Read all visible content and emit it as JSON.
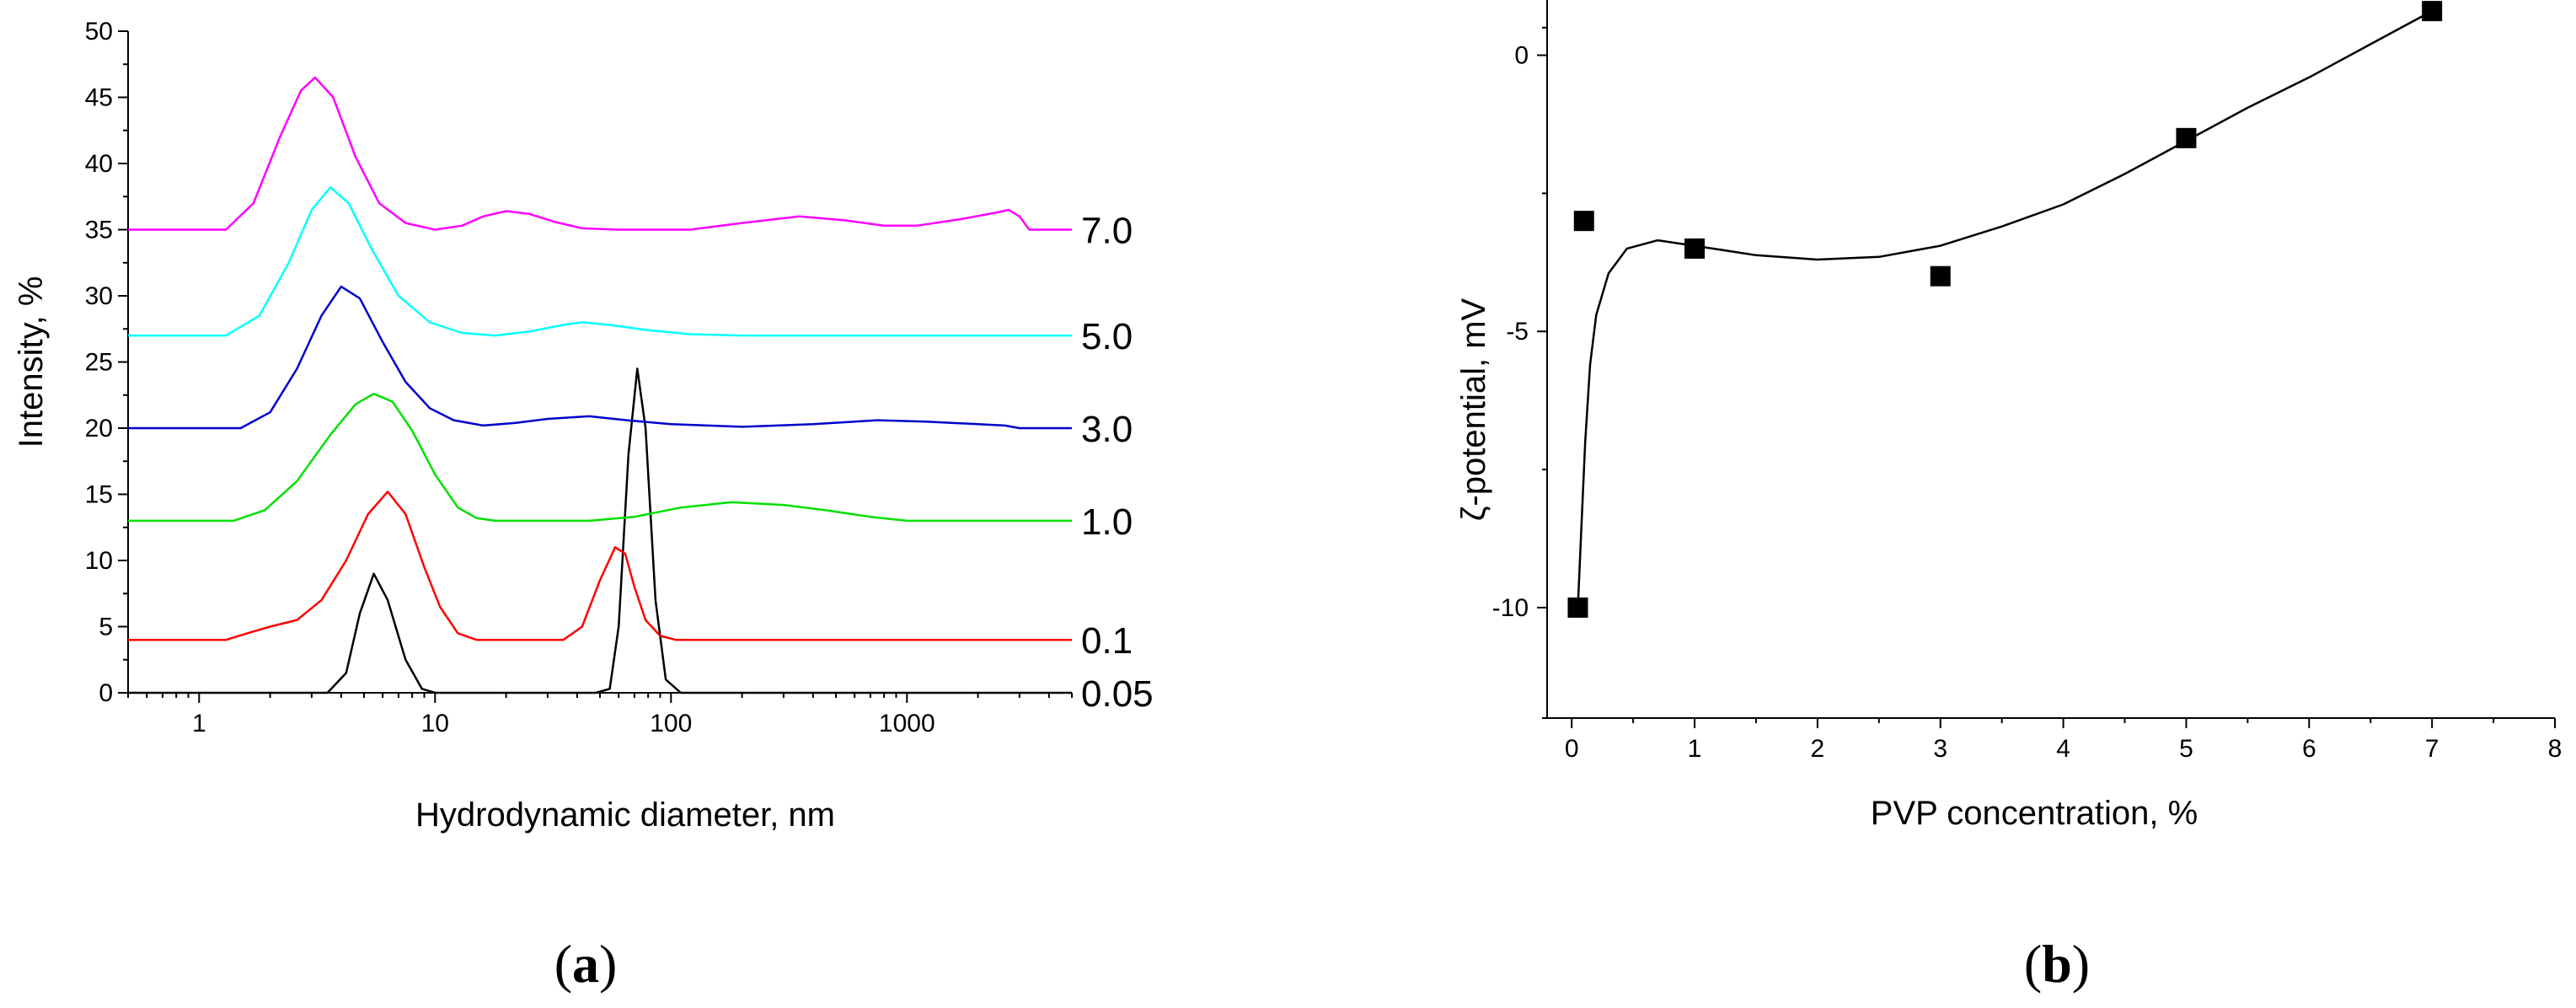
{
  "chart_data": [
    {
      "type": "line",
      "panel_label": "(a)",
      "panel_letter": "a",
      "xlabel": "Hydrodynamic diameter, nm",
      "ylabel": "Intensity, %",
      "xscale": "log",
      "xlim": [
        0.5,
        5000
      ],
      "ylim": [
        0,
        50
      ],
      "xticks": [
        1,
        10,
        100,
        1000
      ],
      "xtick_labels": [
        "1",
        "10",
        "100",
        "1000"
      ],
      "yticks": [
        0,
        5,
        10,
        15,
        20,
        25,
        30,
        35,
        40,
        45,
        50
      ],
      "ytick_labels": [
        "0",
        "5",
        "10",
        "15",
        "20",
        "25",
        "30",
        "35",
        "40",
        "45",
        "50"
      ],
      "series": [
        {
          "name": "0.05",
          "label": "0.05",
          "color": "#000000",
          "baseline": 0,
          "points": [
            [
              0.5,
              0
            ],
            [
              3.5,
              0
            ],
            [
              4.2,
              1.5
            ],
            [
              4.8,
              6
            ],
            [
              5.5,
              9
            ],
            [
              6.3,
              7
            ],
            [
              7.5,
              2.5
            ],
            [
              8.8,
              0.3
            ],
            [
              10,
              0
            ],
            [
              48,
              0
            ],
            [
              55,
              0.3
            ],
            [
              60,
              5
            ],
            [
              66,
              18
            ],
            [
              72,
              24.5
            ],
            [
              78,
              20
            ],
            [
              86,
              7
            ],
            [
              95,
              1
            ],
            [
              110,
              0
            ],
            [
              5000,
              0
            ]
          ]
        },
        {
          "name": "0.1",
          "label": "0.1",
          "color": "#ff0000",
          "baseline": 4,
          "points": [
            [
              0.5,
              4
            ],
            [
              1.3,
              4
            ],
            [
              1.6,
              4.5
            ],
            [
              2.0,
              5
            ],
            [
              2.6,
              5.5
            ],
            [
              3.3,
              7
            ],
            [
              4.2,
              10
            ],
            [
              5.2,
              13.5
            ],
            [
              6.3,
              15.2
            ],
            [
              7.5,
              13.5
            ],
            [
              9,
              9.5
            ],
            [
              10.5,
              6.5
            ],
            [
              12.5,
              4.5
            ],
            [
              15,
              4
            ],
            [
              35,
              4
            ],
            [
              42,
              5
            ],
            [
              50,
              8.5
            ],
            [
              58,
              11
            ],
            [
              64,
              10.5
            ],
            [
              70,
              8
            ],
            [
              78,
              5.5
            ],
            [
              90,
              4.3
            ],
            [
              105,
              4
            ],
            [
              5000,
              4
            ]
          ]
        },
        {
          "name": "1.0",
          "label": "1.0",
          "color": "#00e000",
          "baseline": 13,
          "points": [
            [
              0.5,
              13
            ],
            [
              1.4,
              13
            ],
            [
              1.9,
              13.8
            ],
            [
              2.6,
              16
            ],
            [
              3.6,
              19.5
            ],
            [
              4.6,
              21.8
            ],
            [
              5.5,
              22.6
            ],
            [
              6.6,
              22
            ],
            [
              8,
              19.8
            ],
            [
              10,
              16.5
            ],
            [
              12.5,
              14
            ],
            [
              15,
              13.2
            ],
            [
              18,
              13
            ],
            [
              45,
              13
            ],
            [
              70,
              13.3
            ],
            [
              110,
              14
            ],
            [
              180,
              14.4
            ],
            [
              300,
              14.2
            ],
            [
              450,
              13.8
            ],
            [
              700,
              13.3
            ],
            [
              1000,
              13
            ],
            [
              5000,
              13
            ]
          ]
        },
        {
          "name": "3.0",
          "label": "3.0",
          "color": "#0000cc",
          "baseline": 20,
          "points": [
            [
              0.5,
              20
            ],
            [
              1.5,
              20
            ],
            [
              2.0,
              21.2
            ],
            [
              2.6,
              24.5
            ],
            [
              3.3,
              28.5
            ],
            [
              4.0,
              30.7
            ],
            [
              4.8,
              29.8
            ],
            [
              6,
              26.5
            ],
            [
              7.5,
              23.5
            ],
            [
              9.5,
              21.5
            ],
            [
              12,
              20.6
            ],
            [
              16,
              20.2
            ],
            [
              22,
              20.4
            ],
            [
              30,
              20.7
            ],
            [
              45,
              20.9
            ],
            [
              65,
              20.6
            ],
            [
              100,
              20.3
            ],
            [
              200,
              20.1
            ],
            [
              400,
              20.3
            ],
            [
              750,
              20.6
            ],
            [
              1200,
              20.5
            ],
            [
              2000,
              20.3
            ],
            [
              2600,
              20.2
            ],
            [
              3000,
              20
            ],
            [
              5000,
              20
            ]
          ]
        },
        {
          "name": "5.0",
          "label": "5.0",
          "color": "#00ffff",
          "baseline": 27,
          "points": [
            [
              0.5,
              27
            ],
            [
              1.3,
              27
            ],
            [
              1.8,
              28.5
            ],
            [
              2.4,
              32.5
            ],
            [
              3.0,
              36.5
            ],
            [
              3.6,
              38.2
            ],
            [
              4.3,
              37
            ],
            [
              5.4,
              33.5
            ],
            [
              7,
              30
            ],
            [
              9.5,
              28
            ],
            [
              13,
              27.2
            ],
            [
              18,
              27
            ],
            [
              25,
              27.3
            ],
            [
              35,
              27.8
            ],
            [
              42,
              28
            ],
            [
              55,
              27.8
            ],
            [
              80,
              27.4
            ],
            [
              120,
              27.1
            ],
            [
              200,
              27
            ],
            [
              5000,
              27
            ]
          ]
        },
        {
          "name": "7.0",
          "label": "7.0",
          "color": "#ff00ff",
          "baseline": 35,
          "points": [
            [
              0.5,
              35
            ],
            [
              1.3,
              35
            ],
            [
              1.7,
              37
            ],
            [
              2.2,
              42
            ],
            [
              2.7,
              45.5
            ],
            [
              3.1,
              46.5
            ],
            [
              3.7,
              45
            ],
            [
              4.6,
              40.5
            ],
            [
              5.8,
              37
            ],
            [
              7.5,
              35.5
            ],
            [
              10,
              35
            ],
            [
              13,
              35.3
            ],
            [
              16,
              36
            ],
            [
              20,
              36.4
            ],
            [
              25,
              36.2
            ],
            [
              32,
              35.6
            ],
            [
              42,
              35.1
            ],
            [
              60,
              35
            ],
            [
              120,
              35
            ],
            [
              200,
              35.5
            ],
            [
              350,
              36
            ],
            [
              550,
              35.7
            ],
            [
              800,
              35.3
            ],
            [
              1100,
              35.3
            ],
            [
              1700,
              35.8
            ],
            [
              2400,
              36.3
            ],
            [
              2700,
              36.5
            ],
            [
              3000,
              36
            ],
            [
              3300,
              35
            ],
            [
              5000,
              35
            ]
          ]
        }
      ]
    },
    {
      "type": "scatter",
      "panel_label": "(b)",
      "panel_letter": "b",
      "xlabel": "PVP concentration, %",
      "ylabel": "ζ-potential, mV",
      "xlim": [
        -0.2,
        8
      ],
      "ylim": [
        -12,
        1
      ],
      "xticks": [
        0,
        1,
        2,
        3,
        4,
        5,
        6,
        7,
        8
      ],
      "xtick_labels": [
        "0",
        "1",
        "2",
        "3",
        "4",
        "5",
        "6",
        "7",
        "8"
      ],
      "yticks": [
        0,
        -5,
        -10
      ],
      "ytick_labels": [
        "0",
        "-5",
        "-10"
      ],
      "markers": "filled-square",
      "points": [
        {
          "x": 0.05,
          "y": -10
        },
        {
          "x": 0.1,
          "y": -3
        },
        {
          "x": 1,
          "y": -3.5
        },
        {
          "x": 3,
          "y": -4
        },
        {
          "x": 5,
          "y": -1.5
        },
        {
          "x": 7,
          "y": 0.8
        }
      ],
      "fit_curve": [
        [
          0.05,
          -10
        ],
        [
          0.08,
          -8.5
        ],
        [
          0.11,
          -7
        ],
        [
          0.15,
          -5.6
        ],
        [
          0.2,
          -4.7
        ],
        [
          0.3,
          -3.95
        ],
        [
          0.45,
          -3.5
        ],
        [
          0.7,
          -3.35
        ],
        [
          1.0,
          -3.45
        ],
        [
          1.5,
          -3.62
        ],
        [
          2.0,
          -3.7
        ],
        [
          2.5,
          -3.65
        ],
        [
          3.0,
          -3.45
        ],
        [
          3.5,
          -3.1
        ],
        [
          4.0,
          -2.7
        ],
        [
          4.5,
          -2.15
        ],
        [
          5.0,
          -1.55
        ],
        [
          5.5,
          -0.95
        ],
        [
          6.0,
          -0.4
        ],
        [
          6.5,
          0.2
        ],
        [
          7.0,
          0.8
        ]
      ]
    }
  ]
}
